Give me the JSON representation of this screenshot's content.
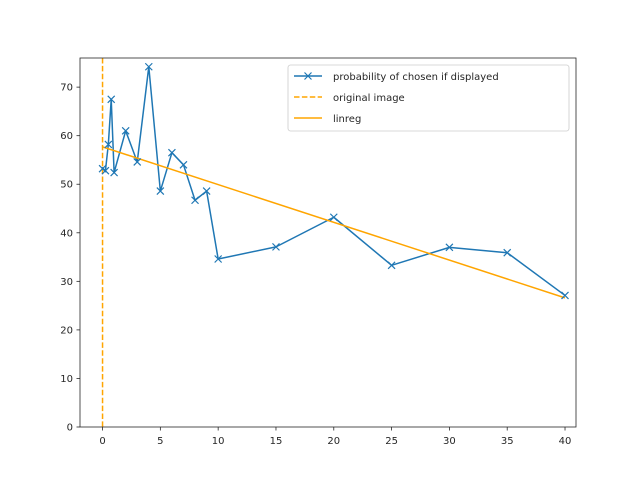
{
  "chart_data": {
    "type": "line",
    "title": "",
    "xlabel": "",
    "ylabel": "",
    "xlim": [
      -1.95,
      40.95
    ],
    "ylim": [
      0,
      76
    ],
    "xticks": [
      0,
      5,
      10,
      15,
      20,
      25,
      30,
      35,
      40
    ],
    "yticks": [
      0,
      10,
      20,
      30,
      40,
      50,
      60,
      70
    ],
    "grid": false,
    "legend_position": "top-right",
    "colors": {
      "series": "#1f77b4",
      "reference": "#ffa500",
      "fit": "#ffa500",
      "axes": "#262626"
    },
    "series": [
      {
        "name": "probability of chosen if displayed",
        "style": "solid",
        "marker": "x",
        "x": [
          0,
          0.25,
          0.5,
          0.75,
          1,
          2,
          3,
          4,
          5,
          6,
          7,
          8,
          9,
          10,
          15,
          20,
          25,
          30,
          35,
          40
        ],
        "y": [
          53.2,
          52.8,
          58.2,
          67.5,
          52.4,
          61.0,
          54.6,
          74.2,
          48.6,
          56.5,
          54.0,
          46.7,
          48.6,
          34.6,
          37.1,
          43.2,
          33.3,
          37.0,
          35.9,
          27.1
        ]
      },
      {
        "name": "original image",
        "style": "dashed",
        "vertical_line_x": 0
      },
      {
        "name": "linreg",
        "style": "solid",
        "x": [
          0,
          40
        ],
        "y": [
          57.7,
          26.6
        ]
      }
    ]
  }
}
